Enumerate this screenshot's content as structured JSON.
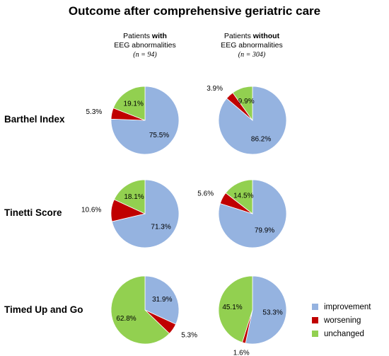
{
  "title": "Outcome after comprehensive geriatric care",
  "columns": [
    {
      "line1_pre": "Patients ",
      "line1_bold": "with",
      "line2": "EEG abnormalities",
      "n": "(n = 94)"
    },
    {
      "line1_pre": "Patients ",
      "line1_bold": "without",
      "line2": "EEG abnormalities",
      "n": "(n = 304)"
    }
  ],
  "rows": [
    "Barthel Index",
    "Tinetti Score",
    "Timed Up and Go"
  ],
  "colors": {
    "improvement": "#95b3e0",
    "worsening": "#c00000",
    "unchanged": "#92d050"
  },
  "chart_data": {
    "type": "pie",
    "title": "Outcome after comprehensive geriatric care",
    "categories": [
      "improvement",
      "worsening",
      "unchanged"
    ],
    "legend": [
      "improvement",
      "worsening",
      "unchanged"
    ],
    "legend_position": "bottom-right",
    "pies": [
      {
        "row": "Barthel Index",
        "column": "with EEG abnormalities",
        "values": [
          75.5,
          5.3,
          19.1
        ],
        "labels": [
          "75.5%",
          "5.3%",
          "19.1%"
        ]
      },
      {
        "row": "Barthel Index",
        "column": "without EEG abnormalities",
        "values": [
          86.2,
          3.9,
          9.9
        ],
        "labels": [
          "86.2%",
          "3.9%",
          "9.9%"
        ]
      },
      {
        "row": "Tinetti Score",
        "column": "with EEG abnormalities",
        "values": [
          71.3,
          10.6,
          18.1
        ],
        "labels": [
          "71.3%",
          "10.6%",
          "18.1%"
        ]
      },
      {
        "row": "Tinetti Score",
        "column": "without EEG abnormalities",
        "values": [
          79.9,
          5.6,
          14.5
        ],
        "labels": [
          "79.9%",
          "5.6%",
          "14.5%"
        ]
      },
      {
        "row": "Timed Up and Go",
        "column": "with EEG abnormalities",
        "values": [
          31.9,
          5.3,
          62.8
        ],
        "labels": [
          "31.9%",
          "5.3%",
          "62.8%"
        ]
      },
      {
        "row": "Timed Up and Go",
        "column": "without EEG abnormalities",
        "values": [
          53.3,
          1.6,
          45.1
        ],
        "labels": [
          "53.3%",
          "1.6%",
          "45.1%"
        ]
      }
    ]
  }
}
